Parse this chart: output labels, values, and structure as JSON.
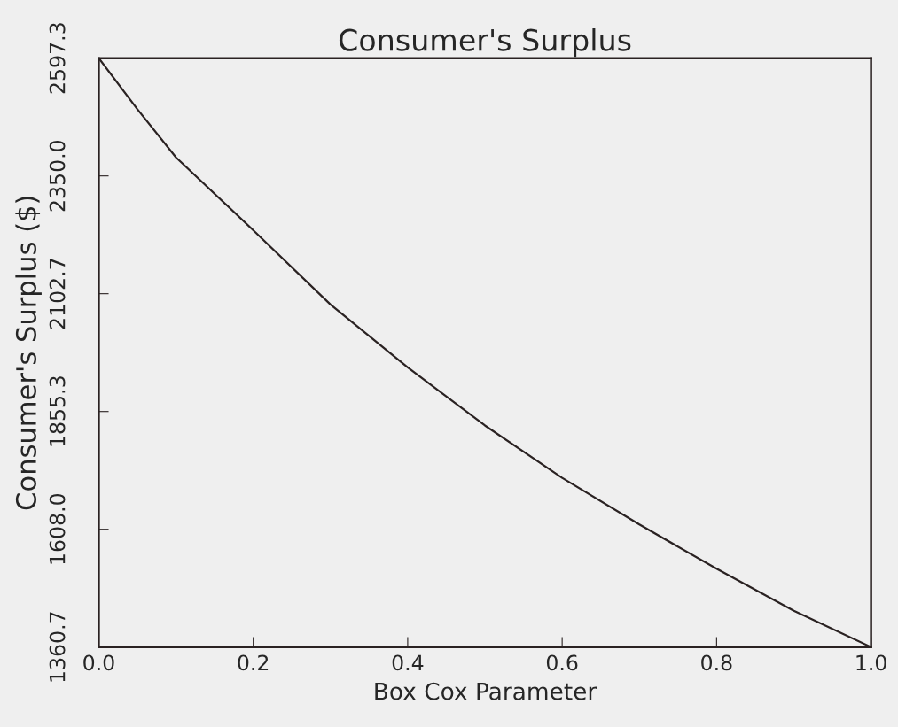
{
  "chart_data": {
    "type": "line",
    "title": "Consumer's Surplus",
    "xlabel": "Box Cox Parameter",
    "ylabel": "Consumer's Surplus ($)",
    "x": [
      0.0,
      0.05,
      0.1,
      0.2,
      0.3,
      0.4,
      0.5,
      0.6,
      0.7,
      0.8,
      0.9,
      1.0
    ],
    "series": [
      {
        "color": "#2a2222",
        "values": [
          2597.3,
          2490,
          2389,
          2236,
          2080,
          1948,
          1826,
          1716,
          1618,
          1525,
          1437,
          1360.7
        ]
      }
    ],
    "xlim": [
      0.0,
      1.0
    ],
    "xticks": [
      {
        "value": 0.0,
        "label": "0.0"
      },
      0.2,
      0.4,
      0.6,
      0.8,
      {
        "value": 1.0,
        "label": "1.0"
      }
    ],
    "ylim": [
      1360.7,
      2597.3
    ],
    "yticks": [
      1360.7,
      {
        "value": 1608.0,
        "label": "1608.0"
      },
      1855.3,
      2102.7,
      {
        "value": 2350.0,
        "label": "2350.0"
      },
      2597.3
    ],
    "grid": false,
    "legend": false,
    "marker": "none",
    "line_style": "solid"
  }
}
